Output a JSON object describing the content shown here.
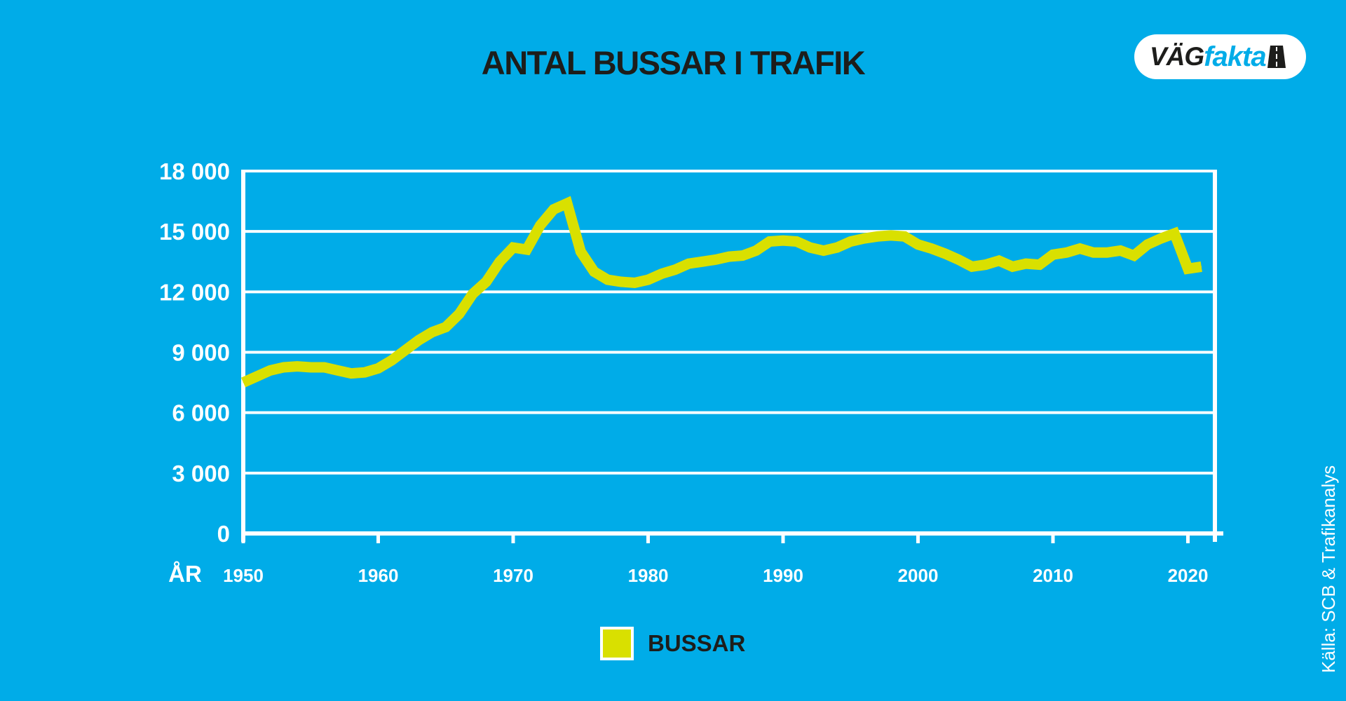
{
  "title": "ANTAL BUSSAR I TRAFIK",
  "logo": {
    "part1": "VÄG",
    "part2": "fakta"
  },
  "source": "Källa: SCB & Trafikanalys",
  "colors": {
    "background": "#00ace8",
    "line": "#d9e000",
    "axis": "#ffffff",
    "title": "#1d1d1b"
  },
  "chart_data": {
    "type": "line",
    "title": "ANTAL BUSSAR I TRAFIK",
    "xlabel": "ÅR",
    "ylabel": "",
    "xlim": [
      1950,
      2022
    ],
    "ylim": [
      0,
      18000
    ],
    "grid": true,
    "legend_position": "bottom-center",
    "y_ticks": [
      {
        "value": 0,
        "label": "0"
      },
      {
        "value": 3000,
        "label": "3 000"
      },
      {
        "value": 6000,
        "label": "6 000"
      },
      {
        "value": 9000,
        "label": "9 000"
      },
      {
        "value": 12000,
        "label": "12 000"
      },
      {
        "value": 15000,
        "label": "15 000"
      },
      {
        "value": 18000,
        "label": "18 000"
      }
    ],
    "x_ticks": [
      {
        "value": 1950,
        "label": "1950"
      },
      {
        "value": 1960,
        "label": "1960"
      },
      {
        "value": 1970,
        "label": "1970"
      },
      {
        "value": 1980,
        "label": "1980"
      },
      {
        "value": 1990,
        "label": "1990"
      },
      {
        "value": 2000,
        "label": "2000"
      },
      {
        "value": 2010,
        "label": "2010"
      },
      {
        "value": 2020,
        "label": "2020"
      }
    ],
    "series": [
      {
        "name": "BUSSAR",
        "color": "#d9e000",
        "x": [
          1950,
          1951,
          1952,
          1953,
          1954,
          1955,
          1956,
          1957,
          1958,
          1959,
          1960,
          1961,
          1962,
          1963,
          1964,
          1965,
          1966,
          1967,
          1968,
          1969,
          1970,
          1971,
          1972,
          1973,
          1974,
          1975,
          1976,
          1977,
          1978,
          1979,
          1980,
          1981,
          1982,
          1983,
          1984,
          1985,
          1986,
          1987,
          1988,
          1989,
          1990,
          1991,
          1992,
          1993,
          1994,
          1995,
          1996,
          1997,
          1998,
          1999,
          2000,
          2001,
          2002,
          2003,
          2004,
          2005,
          2006,
          2007,
          2008,
          2009,
          2010,
          2011,
          2012,
          2013,
          2014,
          2015,
          2016,
          2017,
          2018,
          2019,
          2020,
          2021
        ],
        "y": [
          7500,
          7800,
          8100,
          8250,
          8300,
          8250,
          8250,
          8100,
          7950,
          8000,
          8200,
          8600,
          9100,
          9600,
          10000,
          10250,
          10900,
          11900,
          12500,
          13500,
          14200,
          14100,
          15300,
          16100,
          16400,
          14000,
          13000,
          12600,
          12500,
          12450,
          12600,
          12900,
          13100,
          13400,
          13500,
          13600,
          13750,
          13800,
          14050,
          14500,
          14550,
          14500,
          14200,
          14050,
          14200,
          14500,
          14650,
          14750,
          14800,
          14750,
          14350,
          14150,
          13900,
          13600,
          13250,
          13350,
          13550,
          13250,
          13400,
          13350,
          13850,
          13950,
          14150,
          13950,
          13950,
          14050,
          13800,
          14350,
          14650,
          14900,
          13150,
          13250
        ]
      }
    ]
  }
}
